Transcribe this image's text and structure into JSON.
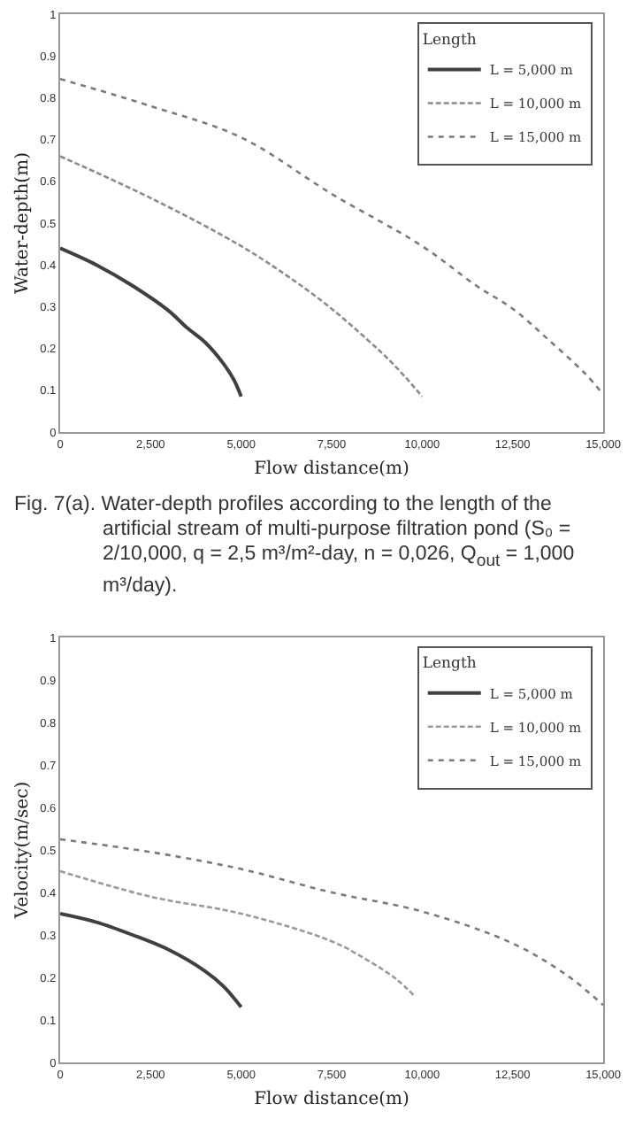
{
  "chart_data": [
    {
      "type": "line",
      "xlabel": "Flow distance(m)",
      "ylabel": "Water-depth(m)",
      "legend": "top right",
      "legend_title": "Length",
      "grid": false,
      "xlim": [
        0,
        15000
      ],
      "xticks": [
        0,
        {
          "value": 2500,
          "label": "2,500"
        },
        {
          "value": 5000,
          "label": "5,000"
        },
        {
          "value": 7500,
          "label": "7,500"
        },
        {
          "value": 10000,
          "label": "10,000"
        },
        {
          "value": 12500,
          "label": "12,500"
        },
        {
          "value": 15000,
          "label": "15,000"
        }
      ],
      "ylim": [
        0,
        1
      ],
      "yticks": [
        0,
        0.1,
        0.2,
        0.3,
        0.4,
        0.5,
        0.6,
        0.7,
        0.8,
        0.9,
        1
      ],
      "series": [
        {
          "name": "L = 5,000 m",
          "color": "#404040",
          "line_style": "solid",
          "x": [
            0,
            1000,
            2000,
            3000,
            3500,
            4000,
            4500,
            4800,
            5000
          ],
          "values": [
            0.44,
            0.4,
            0.35,
            0.29,
            0.25,
            0.215,
            0.165,
            0.125,
            0.085
          ]
        },
        {
          "name": "L = 10,000 m",
          "color": "#8c8c8c",
          "line_style": "dashed",
          "x": [
            0,
            2500,
            5000,
            6500,
            7500,
            8500,
            9000,
            9500,
            10000
          ],
          "values": [
            0.66,
            0.56,
            0.445,
            0.36,
            0.295,
            0.22,
            0.18,
            0.135,
            0.085
          ]
        },
        {
          "name": "L = 15,000 m",
          "color": "#7a7a7a",
          "line_style": "dotted",
          "x": [
            0,
            2500,
            5000,
            7500,
            10000,
            11500,
            12500,
            13500,
            14500,
            15000
          ],
          "values": [
            0.845,
            0.78,
            0.705,
            0.57,
            0.445,
            0.35,
            0.295,
            0.22,
            0.14,
            0.09
          ]
        }
      ],
      "annotations": [
        "Fig. 7(a). Water-depth profiles according to the length of the artificial stream of multi-purpose filtration pond (S₀ = 2/10,000, q = 2,5 m³/m²-day, n = 0,026, Q$_{out}$ = 1,000 m³/day)."
      ]
    },
    {
      "type": "line",
      "xlabel": "Flow distance(m)",
      "ylabel": "Velocity(m/sec)",
      "legend": "top right",
      "legend_title": "Length",
      "grid": false,
      "xlim": [
        0,
        15000
      ],
      "xticks": [
        0,
        {
          "value": 2500,
          "label": "2,500"
        },
        {
          "value": 5000,
          "label": "5,000"
        },
        {
          "value": 7500,
          "label": "7,500"
        },
        {
          "value": 10000,
          "label": "10,000"
        },
        {
          "value": 12500,
          "label": "12,500"
        },
        {
          "value": 15000,
          "label": "15,000"
        }
      ],
      "ylim": [
        0,
        1
      ],
      "yticks": [
        0,
        0.1,
        0.2,
        0.3,
        0.4,
        0.5,
        0.6,
        0.7,
        0.8,
        0.9,
        1
      ],
      "series": [
        {
          "name": "L = 5,000 m",
          "color": "#404040",
          "line_style": "solid",
          "x": [
            0,
            1000,
            2000,
            3000,
            4000,
            4500,
            5000
          ],
          "values": [
            0.35,
            0.33,
            0.3,
            0.265,
            0.215,
            0.18,
            0.13
          ]
        },
        {
          "name": "L = 10,000 m",
          "color": "#9a9a9a",
          "line_style": "dashed",
          "x": [
            0,
            2500,
            5000,
            7500,
            8500,
            9300,
            9800
          ],
          "values": [
            0.45,
            0.39,
            0.35,
            0.285,
            0.24,
            0.195,
            0.155
          ]
        },
        {
          "name": "L = 15,000 m",
          "color": "#7a7a7a",
          "line_style": "dotted",
          "x": [
            0,
            2500,
            5000,
            7500,
            10000,
            12500,
            14000,
            15000
          ],
          "values": [
            0.525,
            0.495,
            0.455,
            0.4,
            0.355,
            0.28,
            0.205,
            0.135
          ]
        }
      ]
    }
  ]
}
